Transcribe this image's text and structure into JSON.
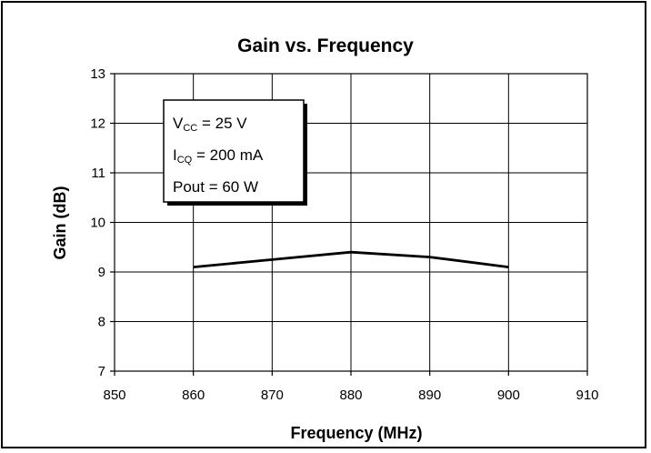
{
  "chart_data": {
    "type": "line",
    "title": "Gain vs. Frequency",
    "xlabel": "Frequency (MHz)",
    "ylabel": "Gain (dB)",
    "xlim": [
      850,
      910
    ],
    "ylim": [
      7,
      13
    ],
    "xticks": [
      850,
      860,
      870,
      880,
      890,
      900,
      910
    ],
    "yticks": [
      7,
      8,
      9,
      10,
      11,
      12,
      13
    ],
    "grid": true,
    "series": [
      {
        "x": [
          860,
          870,
          880,
          890,
          900
        ],
        "y": [
          9.1,
          9.25,
          9.4,
          9.3,
          9.1
        ]
      }
    ],
    "annotation": {
      "lines": [
        {
          "main": "V",
          "sub": "CC",
          "rest": " = 25 V"
        },
        {
          "main": "I",
          "sub": "CQ",
          "rest": " = 200 mA"
        },
        {
          "main": "Pout = 60 W",
          "sub": "",
          "rest": ""
        }
      ]
    },
    "colors": {
      "line": "#000000",
      "grid": "#000000"
    }
  }
}
